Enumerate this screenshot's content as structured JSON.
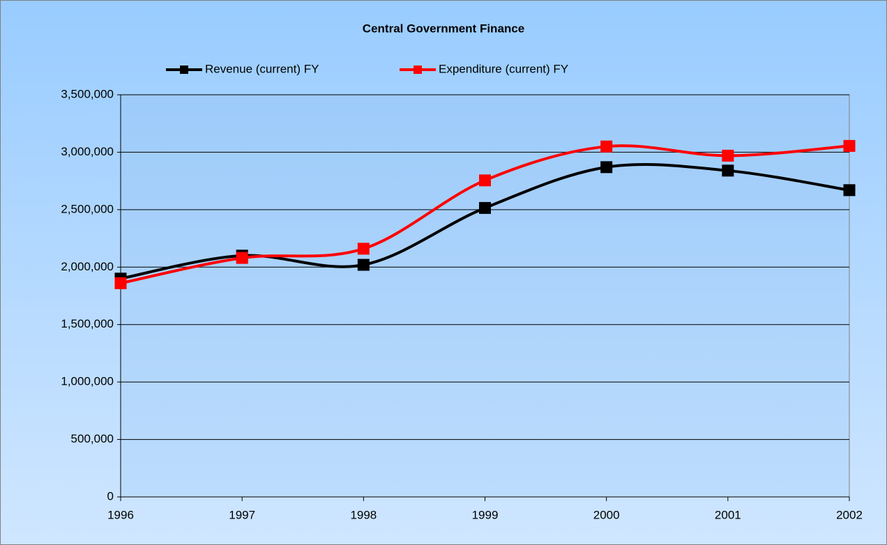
{
  "chart_data": {
    "type": "line",
    "title": "Central Government Finance",
    "categories": [
      "1996",
      "1997",
      "1998",
      "1999",
      "2000",
      "2001",
      "2002"
    ],
    "series": [
      {
        "name": "Revenue (current) FY",
        "color": "#000000",
        "values": [
          1900000,
          2100000,
          2020000,
          2515000,
          2870000,
          2840000,
          2670000
        ]
      },
      {
        "name": "Expenditure (current) FY",
        "color": "#ff0000",
        "values": [
          1860000,
          2080000,
          2160000,
          2755000,
          3050000,
          2970000,
          3055000
        ]
      }
    ],
    "ylim": [
      0,
      3500000
    ],
    "yticks": [
      0,
      {
        "value": 500000,
        "label": "500,000"
      },
      {
        "value": 1000000,
        "label": "1,000,000"
      },
      {
        "value": 1500000,
        "label": "1,500,000"
      },
      {
        "value": 2000000,
        "label": "2,000,000"
      },
      {
        "value": 2500000,
        "label": "2,500,000"
      },
      {
        "value": 3000000,
        "label": "3,000,000"
      },
      {
        "value": 3500000,
        "label": "3,500,000"
      }
    ],
    "grid": true,
    "smooth": true,
    "legend": "top"
  }
}
